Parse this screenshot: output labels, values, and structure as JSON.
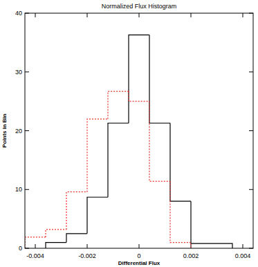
{
  "chart_data": {
    "type": "histogram",
    "title": "Normalized Flux Histogram",
    "x_label": "Differential Flux",
    "y_label": "Points in Bin",
    "series": [
      {
        "color": "#000000",
        "line_style": "solid",
        "bins": [
          -0.0036,
          -0.0028,
          -0.002,
          -0.0012,
          -0.0004,
          0.0004,
          0.0012,
          0.002,
          0.0028,
          0.0036
        ],
        "values": [
          1,
          2.5,
          8.7,
          21.3,
          36.3,
          21.3,
          8,
          0.8,
          0.8
        ]
      },
      {
        "color": "#e8322c",
        "line_style": "dotted",
        "bins": [
          -0.0044,
          -0.0036,
          -0.0028,
          -0.002,
          -0.0012,
          -0.0004,
          0.0004,
          0.0012,
          0.002
        ],
        "values": [
          1.9,
          3.2,
          9.6,
          22,
          26.7,
          25,
          11.4,
          1
        ]
      }
    ],
    "xlim": [
      -0.0044,
      0.0044
    ],
    "xticks": [
      -0.004,
      -0.002,
      0,
      0.002,
      0.004
    ],
    "ylim": [
      0,
      40
    ],
    "yticks": [
      0,
      10,
      20,
      30,
      40
    ],
    "grid": false
  }
}
